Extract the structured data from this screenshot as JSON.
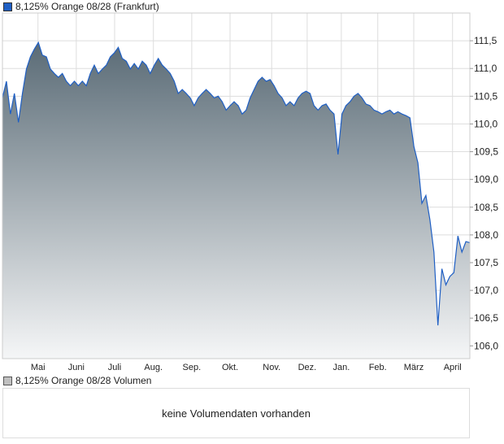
{
  "chart_data": {
    "type": "area",
    "title": "8,125% Orange 08/28 (Frankfurt)",
    "legend": "8,125% Orange 08/28 (Frankfurt)",
    "line_color": "#1f5fc4",
    "fill_top": "#5a6b76",
    "fill_bottom": "#f5f6f7",
    "ylim": [
      105.77,
      112.0
    ],
    "y_ticks": [
      106.0,
      106.5,
      107.0,
      107.5,
      108.0,
      108.5,
      109.0,
      109.5,
      110.0,
      110.5,
      111.0,
      111.5
    ],
    "y_tick_labels": [
      "106,0",
      "106,5",
      "107,0",
      "107,5",
      "108,0",
      "108,5",
      "109,0",
      "109,5",
      "110,0",
      "110,5",
      "111,0",
      "111,5"
    ],
    "x_tick_labels": [
      "Mai",
      "Juni",
      "Juli",
      "Aug.",
      "Sep.",
      "Okt.",
      "Nov.",
      "Dez.",
      "Jan.",
      "Feb.",
      "März",
      "April"
    ],
    "x_tick_positions": [
      0.076,
      0.158,
      0.24,
      0.323,
      0.405,
      0.487,
      0.576,
      0.652,
      0.725,
      0.803,
      0.88,
      0.963
    ],
    "values": [
      110.47,
      110.77,
      110.18,
      110.55,
      110.03,
      110.55,
      110.99,
      111.21,
      111.35,
      111.47,
      111.24,
      111.21,
      110.99,
      110.91,
      110.84,
      110.91,
      110.77,
      110.69,
      110.77,
      110.69,
      110.77,
      110.69,
      110.91,
      111.06,
      110.91,
      110.99,
      111.06,
      111.21,
      111.28,
      111.38,
      111.18,
      111.13,
      110.99,
      111.09,
      110.99,
      111.13,
      111.06,
      110.91,
      111.06,
      111.18,
      111.06,
      110.99,
      110.91,
      110.77,
      110.55,
      110.62,
      110.55,
      110.47,
      110.33,
      110.47,
      110.55,
      110.62,
      110.55,
      110.47,
      110.5,
      110.4,
      110.25,
      110.33,
      110.4,
      110.33,
      110.18,
      110.25,
      110.47,
      110.62,
      110.77,
      110.84,
      110.77,
      110.8,
      110.69,
      110.55,
      110.47,
      110.33,
      110.4,
      110.33,
      110.47,
      110.55,
      110.59,
      110.55,
      110.33,
      110.25,
      110.33,
      110.36,
      110.25,
      110.18,
      109.45,
      110.18,
      110.33,
      110.4,
      110.5,
      110.55,
      110.47,
      110.36,
      110.33,
      110.25,
      110.22,
      110.18,
      110.22,
      110.25,
      110.18,
      110.22,
      110.18,
      110.15,
      110.11,
      109.59,
      109.3,
      108.57,
      108.71,
      108.27,
      107.69,
      106.37,
      107.39,
      107.1,
      107.25,
      107.32,
      107.98,
      107.69,
      107.88,
      107.86
    ],
    "volume": {
      "legend": "8,125% Orange 08/28 Volumen",
      "legend_color": "#c0c0c0",
      "message": "keine Volumendaten vorhanden"
    }
  }
}
